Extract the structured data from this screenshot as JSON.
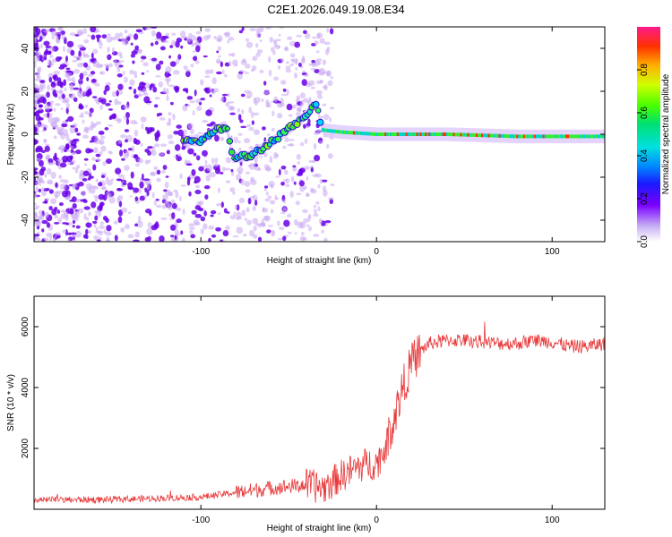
{
  "chart_data": [
    {
      "type": "heatmap",
      "title": "C2E1.2026.049.19.08.E34",
      "xlabel": "Height of straight line (km)",
      "ylabel": "Frequency (Hz)",
      "xlim": [
        -195,
        130
      ],
      "ylim": [
        -50,
        50
      ],
      "xticks": [
        -100,
        0,
        100
      ],
      "yticks": [
        -40,
        -20,
        0,
        20,
        40
      ],
      "colorbar": {
        "label": "Normalized spectral amplitude",
        "range": [
          0.0,
          1.0
        ],
        "ticks": [
          0.0,
          0.2,
          0.4,
          0.6,
          0.8
        ]
      },
      "ridge": {
        "description_points": [
          {
            "x": -110,
            "y": -3
          },
          {
            "x": -100,
            "y": -3
          },
          {
            "x": -92,
            "y": 2
          },
          {
            "x": -85,
            "y": 4
          },
          {
            "x": -82,
            "y": -11
          },
          {
            "x": -72,
            "y": -10
          },
          {
            "x": -62,
            "y": -5
          },
          {
            "x": -52,
            "y": 1
          },
          {
            "x": -44,
            "y": 6
          },
          {
            "x": -38,
            "y": 11
          },
          {
            "x": -34,
            "y": 14
          },
          {
            "x": -31,
            "y": 2
          },
          {
            "x": -20,
            "y": 1
          },
          {
            "x": 0,
            "y": 0
          },
          {
            "x": 40,
            "y": 0
          },
          {
            "x": 80,
            "y": -1
          },
          {
            "x": 130,
            "y": -1
          }
        ]
      }
    },
    {
      "type": "line",
      "xlabel": "Height of straight line (km)",
      "ylabel": "SNR (10 * v/v)",
      "xlim": [
        -195,
        130
      ],
      "ylim": [
        0,
        7000
      ],
      "xticks": [
        -100,
        0,
        100
      ],
      "yticks": [
        2000,
        4000,
        6000
      ],
      "series": [
        {
          "name": "SNR",
          "color": "#e8393a",
          "trend": {
            "x": [
              -195,
              -150,
              -100,
              -80,
              -60,
              -40,
              -30,
              -20,
              -10,
              -5,
              0,
              5,
              10,
              15,
              20,
              25,
              30,
              40,
              50,
              60,
              70,
              80,
              90,
              100,
              110,
              120,
              130
            ],
            "y": [
              300,
              320,
              400,
              550,
              700,
              800,
              700,
              1100,
              1400,
              1500,
              1500,
              2000,
              3000,
              4000,
              4800,
              5200,
              5450,
              5550,
              5550,
              5500,
              5450,
              5450,
              5550,
              5500,
              5350,
              5350,
              5450
            ]
          }
        }
      ]
    }
  ],
  "colors": {
    "line": "#e8393a",
    "scatter": "#6a00e8",
    "scatter_light": "#c9a8f2"
  }
}
